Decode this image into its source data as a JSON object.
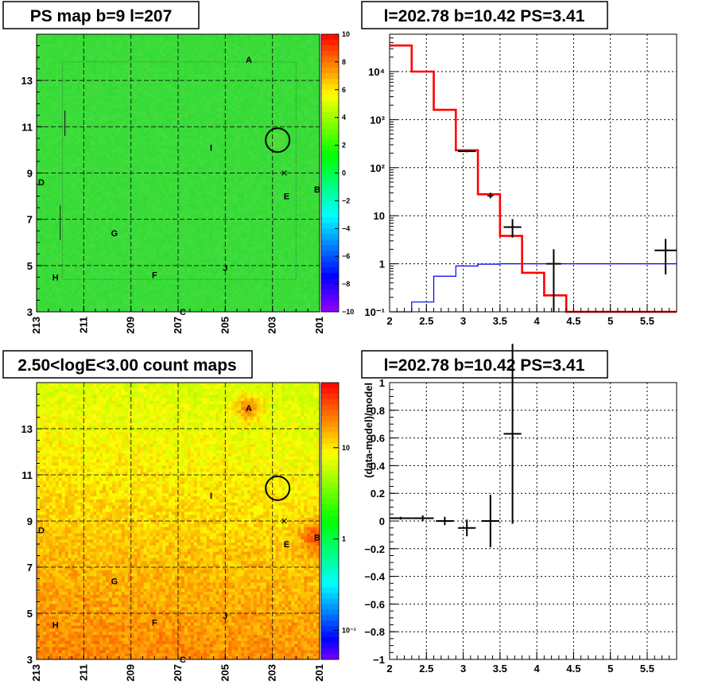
{
  "colors": {
    "red_line": "#ff0000",
    "blue_line": "#0000ff",
    "map_green": "#3de03d"
  },
  "panels": {
    "ps_map": {
      "title": "PS map b=9 l=207"
    },
    "spectrum": {
      "title": "l=202.78 b=10.42 PS=3.41"
    },
    "count_map": {
      "title": "2.50<logE<3.00 count maps"
    },
    "residual": {
      "title": "l=202.78 b=10.42 PS=3.41"
    }
  },
  "chart_data": [
    {
      "type": "heatmap",
      "title": "PS map b=9 l=207",
      "xlim": [
        213,
        201
      ],
      "ylim": [
        3,
        15
      ],
      "x_ticks": [
        "213",
        "211",
        "209",
        "207",
        "205",
        "203",
        "201"
      ],
      "y_ticks": [
        "3",
        "5",
        "7",
        "9",
        "11",
        "13"
      ],
      "colorbar": {
        "min": -10,
        "max": 10,
        "ticks": [
          "10",
          "8",
          "6",
          "4",
          "2",
          "0",
          "−2",
          "−4",
          "−6",
          "−8",
          "−10"
        ]
      },
      "sources": [
        {
          "label": "A",
          "l": 204.0,
          "b": 13.9
        },
        {
          "label": "B",
          "l": 201.1,
          "b": 8.3
        },
        {
          "label": "C",
          "l": 206.8,
          "b": 3.0
        },
        {
          "label": "D",
          "l": 212.8,
          "b": 8.6
        },
        {
          "label": "E",
          "l": 202.4,
          "b": 8.0
        },
        {
          "label": "F",
          "l": 208.0,
          "b": 4.6
        },
        {
          "label": "G",
          "l": 209.7,
          "b": 6.4
        },
        {
          "label": "H",
          "l": 212.2,
          "b": 4.5
        },
        {
          "label": "I",
          "l": 205.6,
          "b": 10.1
        },
        {
          "label": "J",
          "l": 205.0,
          "b": 4.9
        }
      ],
      "marker_circle": {
        "l": 202.78,
        "b": 10.42
      }
    },
    {
      "type": "line",
      "title": "l=202.78 b=10.42 PS=3.41",
      "xlim": [
        2.0,
        5.9
      ],
      "ylog": true,
      "ylim": [
        0.1,
        60000
      ],
      "x_ticks": [
        "2",
        "2.5",
        "3",
        "3.5",
        "4",
        "4.5",
        "5",
        "5.5"
      ],
      "y_ticks": [
        "10⁻¹",
        "1",
        "10",
        "10²",
        "10³",
        "10⁴"
      ],
      "model_red": {
        "edges": [
          2.0,
          2.3,
          2.6,
          2.9,
          3.2,
          3.5,
          3.8,
          4.1,
          4.4,
          5.9
        ],
        "values": [
          35000,
          10000,
          1600,
          230,
          28,
          3.8,
          0.65,
          0.22,
          0.1
        ]
      },
      "bkg_blue": {
        "edges": [
          2.0,
          2.3,
          2.6,
          2.9,
          3.2,
          3.5,
          5.9
        ],
        "values": [
          0.1,
          0.16,
          0.55,
          0.9,
          0.98,
          1.0
        ]
      },
      "data_points": [
        {
          "x": 3.05,
          "y": 220,
          "xerr": 0.12,
          "ylo": 210,
          "yhi": 232
        },
        {
          "x": 3.37,
          "y": 26,
          "xerr": 0.04,
          "ylo": 23,
          "yhi": 30
        },
        {
          "x": 3.67,
          "y": 5.8,
          "xerr": 0.12,
          "ylo": 3.5,
          "yhi": 8.5
        },
        {
          "x": 4.23,
          "y": 1.0,
          "xerr": 0.1,
          "ylo": 0.1,
          "yhi": 2.0
        },
        {
          "x": 5.75,
          "y": 1.9,
          "xerr": 0.15,
          "ylo": 0.6,
          "yhi": 3.3
        }
      ]
    },
    {
      "type": "heatmap",
      "title": "2.50<logE<3.00 count maps",
      "xlim": [
        213,
        201
      ],
      "ylim": [
        3,
        15
      ],
      "x_ticks": [
        "213",
        "211",
        "209",
        "207",
        "205",
        "203",
        "201"
      ],
      "y_ticks": [
        "3",
        "5",
        "7",
        "9",
        "11",
        "13"
      ],
      "colorbar": {
        "log": true,
        "ticks": [
          "10",
          "1",
          "10⁻¹"
        ]
      },
      "sources": [
        {
          "label": "A",
          "l": 204.0,
          "b": 13.9
        },
        {
          "label": "B",
          "l": 201.1,
          "b": 8.3
        },
        {
          "label": "C",
          "l": 206.8,
          "b": 3.0
        },
        {
          "label": "D",
          "l": 212.8,
          "b": 8.6
        },
        {
          "label": "E",
          "l": 202.4,
          "b": 8.0
        },
        {
          "label": "F",
          "l": 208.0,
          "b": 4.6
        },
        {
          "label": "G",
          "l": 209.7,
          "b": 6.4
        },
        {
          "label": "H",
          "l": 212.2,
          "b": 4.5
        },
        {
          "label": "I",
          "l": 205.6,
          "b": 10.1
        },
        {
          "label": "J",
          "l": 205.0,
          "b": 4.9
        }
      ],
      "marker_circle": {
        "l": 202.78,
        "b": 10.42
      }
    },
    {
      "type": "scatter",
      "title": "l=202.78 b=10.42 PS=3.41",
      "ylabel": "(data-model)/model",
      "xlim": [
        2.0,
        5.9
      ],
      "ylim": [
        -1,
        1
      ],
      "x_ticks": [
        "2",
        "2.5",
        "3",
        "3.5",
        "4",
        "4.5",
        "5",
        "5.5"
      ],
      "y_ticks": [
        "1",
        "0.8",
        "0.6",
        "0.4",
        "0.2",
        "0",
        "−0.2",
        "−0.4",
        "−0.6",
        "−0.8",
        "−1"
      ],
      "data_points": [
        {
          "x": 2.15,
          "y": 0.02,
          "xerr": 0.15,
          "yerr": 0.01
        },
        {
          "x": 2.45,
          "y": 0.02,
          "xerr": 0.15,
          "yerr": 0.02
        },
        {
          "x": 2.75,
          "y": 0.0,
          "xerr": 0.12,
          "yerr": 0.03
        },
        {
          "x": 3.05,
          "y": -0.05,
          "xerr": 0.12,
          "yerr": 0.06
        },
        {
          "x": 3.37,
          "y": 0.0,
          "xerr": 0.12,
          "yerr": 0.19
        },
        {
          "x": 3.67,
          "y": 0.63,
          "xerr": 0.12,
          "yerr": 0.65
        }
      ]
    }
  ]
}
